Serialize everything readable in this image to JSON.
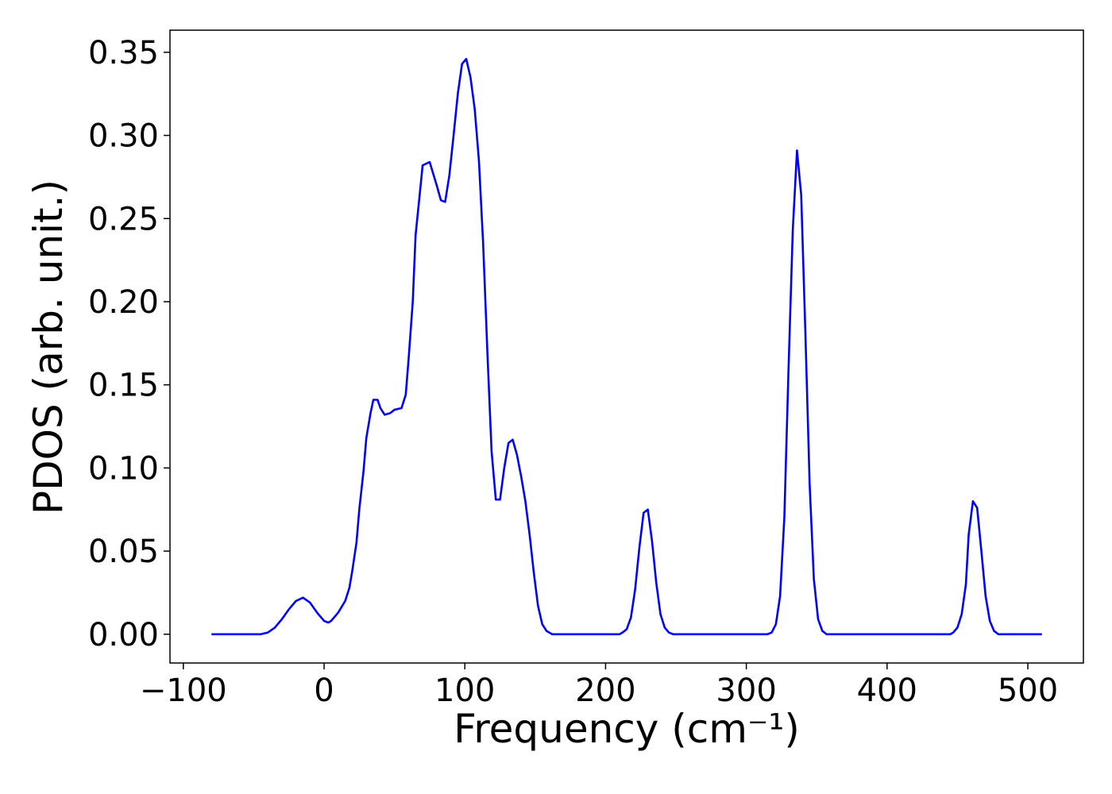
{
  "chart_data": {
    "type": "line",
    "xlabel": "Frequency (cm⁻¹)",
    "ylabel": "PDOS (arb. unit.)",
    "xlim": [
      -109.5,
      539.5
    ],
    "ylim": [
      -0.0173,
      0.3633
    ],
    "xticks": [
      {
        "value": -100,
        "label": "−100"
      },
      0,
      100,
      200,
      300,
      400,
      500
    ],
    "yticks": [
      {
        "value": 0,
        "label": "0.00"
      },
      0.05,
      {
        "value": 0.1,
        "label": "0.10"
      },
      0.15,
      {
        "value": 0.2,
        "label": "0.20"
      },
      0.25,
      {
        "value": 0.3,
        "label": "0.30"
      },
      0.35
    ],
    "grid": false,
    "x": [
      -80,
      -60,
      -45,
      -40,
      -35,
      -30,
      -25,
      -20,
      -15,
      -10,
      -5,
      0,
      3,
      5,
      10,
      15,
      18,
      20,
      23,
      25,
      28,
      30,
      33,
      35,
      38,
      40,
      43,
      47,
      50,
      55,
      58,
      60,
      63,
      65,
      68,
      70,
      75,
      80,
      83,
      86,
      89,
      92,
      95,
      98,
      101,
      104,
      107,
      110,
      113,
      116,
      119,
      122,
      125,
      128,
      131,
      134,
      137,
      140,
      143,
      146,
      149,
      152,
      155,
      158,
      162,
      190,
      210,
      212,
      215,
      218,
      221,
      224,
      227,
      230,
      233,
      236,
      239,
      242,
      245,
      248,
      280,
      315,
      318,
      321,
      324,
      327,
      330,
      333,
      336,
      339,
      342,
      345,
      348,
      351,
      354,
      357,
      400,
      445,
      447,
      450,
      453,
      456,
      458,
      461,
      464,
      467,
      470,
      473,
      476,
      479,
      510
    ],
    "series": [
      {
        "color": "#0000ff",
        "values": [
          0,
          0,
          0,
          0.001,
          0.004,
          0.009,
          0.015,
          0.02,
          0.022,
          0.019,
          0.013,
          0.008,
          0.007,
          0.008,
          0.013,
          0.02,
          0.028,
          0.038,
          0.055,
          0.075,
          0.098,
          0.118,
          0.133,
          0.141,
          0.141,
          0.136,
          0.132,
          0.133,
          0.135,
          0.136,
          0.144,
          0.165,
          0.2,
          0.24,
          0.265,
          0.282,
          0.284,
          0.27,
          0.261,
          0.26,
          0.276,
          0.3,
          0.325,
          0.343,
          0.346,
          0.335,
          0.316,
          0.285,
          0.235,
          0.17,
          0.11,
          0.081,
          0.081,
          0.1,
          0.115,
          0.117,
          0.108,
          0.095,
          0.08,
          0.06,
          0.037,
          0.017,
          0.006,
          0.002,
          0,
          0,
          0,
          0.001,
          0.003,
          0.01,
          0.027,
          0.052,
          0.073,
          0.075,
          0.056,
          0.031,
          0.012,
          0.004,
          0.001,
          0,
          0,
          0,
          0.001,
          0.006,
          0.023,
          0.07,
          0.16,
          0.243,
          0.291,
          0.264,
          0.18,
          0.09,
          0.033,
          0.009,
          0.002,
          0,
          0,
          0,
          0.001,
          0.004,
          0.012,
          0.03,
          0.06,
          0.08,
          0.076,
          0.05,
          0.023,
          0.008,
          0.002,
          0,
          0
        ]
      }
    ]
  }
}
